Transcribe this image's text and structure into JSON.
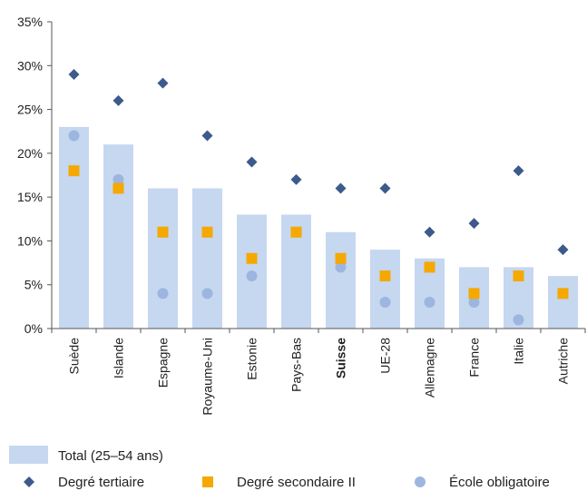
{
  "chart_data": {
    "type": "bar",
    "categories": [
      "Suède",
      "Islande",
      "Espagne",
      "Royaume-Uni",
      "Estonie",
      "Pays-Bas",
      "Suisse",
      "UE-28",
      "Allemagne",
      "France",
      "Italie",
      "Autriche"
    ],
    "bold_category": "Suisse",
    "yticks": [
      "0%",
      "5%",
      "10%",
      "15%",
      "20%",
      "25%",
      "30%",
      "35%"
    ],
    "ylim": [
      0,
      35
    ],
    "grid": false,
    "legend_position": "bottom",
    "series": [
      {
        "name": "Total (25–54 ans)",
        "kind": "bar",
        "color": "#c6d7f0",
        "values": [
          23,
          21,
          16,
          16,
          13,
          13,
          11,
          9,
          8,
          7,
          7,
          6
        ]
      },
      {
        "name": "Degré tertiaire",
        "kind": "diamond",
        "color": "#3d5a8c",
        "values": [
          29,
          26,
          28,
          22,
          19,
          17,
          16,
          16,
          11,
          12,
          18,
          9
        ]
      },
      {
        "name": "Degré secondaire II",
        "kind": "square",
        "color": "#f5a800",
        "values": [
          18,
          16,
          11,
          11,
          8,
          11,
          8,
          6,
          7,
          4,
          6,
          4
        ]
      },
      {
        "name": "École obligatoire",
        "kind": "circle",
        "color": "#9cb6e0",
        "values": [
          22,
          17,
          4,
          4,
          6,
          11,
          7,
          3,
          3,
          3,
          1,
          4
        ]
      }
    ]
  }
}
